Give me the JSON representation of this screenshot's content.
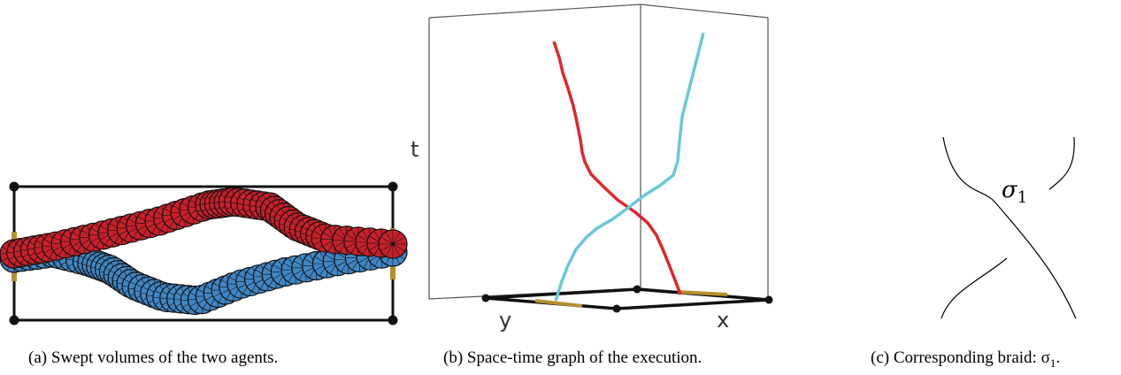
{
  "panels": {
    "a": {
      "caption": "(a) Swept volumes of the two agents.",
      "colors": {
        "agent_red": "#c8202a",
        "agent_blue": "#3f86c4",
        "edge": "#111111",
        "marker": "#b5902f"
      }
    },
    "b": {
      "caption": "(b) Space-time graph of the execution.",
      "axis_t": "t",
      "axis_x": "x",
      "axis_y": "y",
      "colors": {
        "agent_red": "#e0262b",
        "agent_cyan": "#69c7d8",
        "box": "#555555"
      }
    },
    "c": {
      "caption": "(c) Corresponding braid: σ",
      "caption_sub": "1",
      "caption_end": ".",
      "generator": "σ",
      "generator_sub": "1"
    }
  }
}
